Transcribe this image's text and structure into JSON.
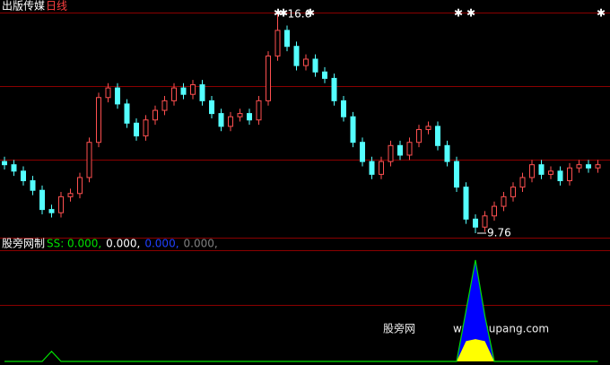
{
  "chart_data": {
    "type": "candlestick",
    "title": "出版传媒",
    "period": "日线",
    "up_color": "#ff5050",
    "down_color": "#54ffff",
    "ylim": [
      9.62,
      17.05
    ],
    "high_label": 16.6,
    "low_label": 9.76,
    "open": [
      12.0,
      11.9,
      11.7,
      11.4,
      11.1,
      10.5,
      10.4,
      10.9,
      11.0,
      11.5,
      12.6,
      14.0,
      14.3,
      13.8,
      13.2,
      12.8,
      13.3,
      13.6,
      13.9,
      14.3,
      14.1,
      14.4,
      13.9,
      13.5,
      13.1,
      13.4,
      13.5,
      13.3,
      13.9,
      15.3,
      16.1,
      15.6,
      15.0,
      15.2,
      14.8,
      14.6,
      13.9,
      13.4,
      12.6,
      12.0,
      11.6,
      12.0,
      12.5,
      12.2,
      12.6,
      13.0,
      13.1,
      12.5,
      12.0,
      11.2,
      10.2,
      9.95,
      10.3,
      10.6,
      10.9,
      11.2,
      11.5,
      11.9,
      11.6,
      11.7,
      11.4,
      11.8,
      11.9,
      11.8
    ],
    "high": [
      12.15,
      12.05,
      11.85,
      11.55,
      11.25,
      10.65,
      11.05,
      11.15,
      11.65,
      12.75,
      14.15,
      14.45,
      14.45,
      13.95,
      13.35,
      13.45,
      13.75,
      14.05,
      14.45,
      14.45,
      14.55,
      14.55,
      14.05,
      13.65,
      13.55,
      13.65,
      13.65,
      14.05,
      15.45,
      16.6,
      16.25,
      15.75,
      15.35,
      15.35,
      14.95,
      14.75,
      14.05,
      13.55,
      12.75,
      12.15,
      12.15,
      12.65,
      12.65,
      12.75,
      13.15,
      13.25,
      13.25,
      12.65,
      12.15,
      11.35,
      10.35,
      10.45,
      10.75,
      11.05,
      11.35,
      11.65,
      12.05,
      12.05,
      11.85,
      11.85,
      11.95,
      12.05,
      12.05,
      12.05
    ],
    "low": [
      11.75,
      11.55,
      11.25,
      10.95,
      10.35,
      10.25,
      10.25,
      10.75,
      10.85,
      11.35,
      12.45,
      13.85,
      13.65,
      13.05,
      12.65,
      12.65,
      13.15,
      13.45,
      13.75,
      13.95,
      13.95,
      13.75,
      13.35,
      12.95,
      12.95,
      13.25,
      13.15,
      13.15,
      13.75,
      15.15,
      15.45,
      14.85,
      14.85,
      14.65,
      14.45,
      13.75,
      13.25,
      12.45,
      11.85,
      11.45,
      11.45,
      11.85,
      12.05,
      12.05,
      12.45,
      12.85,
      12.35,
      11.85,
      11.05,
      10.05,
      9.76,
      9.8,
      10.15,
      10.45,
      10.75,
      11.05,
      11.35,
      11.45,
      11.45,
      11.25,
      11.25,
      11.65,
      11.65,
      11.65
    ],
    "close": [
      11.9,
      11.7,
      11.4,
      11.1,
      10.5,
      10.4,
      10.9,
      11.0,
      11.5,
      12.6,
      14.0,
      14.3,
      13.8,
      13.2,
      12.8,
      13.3,
      13.6,
      13.9,
      14.3,
      14.1,
      14.4,
      13.9,
      13.5,
      13.1,
      13.4,
      13.5,
      13.3,
      13.9,
      15.3,
      16.1,
      15.6,
      15.0,
      15.2,
      14.8,
      14.6,
      13.9,
      13.4,
      12.6,
      12.0,
      11.6,
      12.0,
      12.5,
      12.2,
      12.6,
      13.0,
      13.1,
      12.5,
      12.0,
      11.2,
      10.2,
      9.95,
      10.3,
      10.6,
      10.9,
      11.2,
      11.5,
      11.9,
      11.6,
      11.7,
      11.4,
      11.8,
      11.9,
      11.8,
      11.9
    ],
    "indicator": {
      "title": "股旁网制",
      "name": "SS:",
      "ylim": [
        0,
        100
      ],
      "readout": [
        0,
        0,
        0,
        0
      ],
      "readout_labels": [
        "0.000,",
        "0.000,",
        "0.000,",
        "0.000,"
      ],
      "readout_colors": [
        "#00e000",
        "#ffffff",
        "#2040ff",
        "#808080"
      ],
      "series": [
        {
          "color": "#0000ff",
          "values": [
            0,
            0,
            0,
            0,
            0,
            0,
            0,
            0,
            0,
            0,
            0,
            0,
            0,
            0,
            0,
            0,
            0,
            0,
            0,
            0,
            0,
            0,
            0,
            0,
            0,
            0,
            0,
            0,
            0,
            0,
            0,
            0,
            0,
            0,
            0,
            0,
            0,
            0,
            0,
            0,
            0,
            0,
            0,
            0,
            0,
            0,
            0,
            0,
            0,
            50,
            100,
            45,
            0,
            0,
            0,
            0,
            0,
            0,
            0,
            0,
            0,
            0,
            0,
            0
          ]
        },
        {
          "color": "#ffff00",
          "values": [
            0,
            0,
            0,
            0,
            0,
            0,
            0,
            0,
            0,
            0,
            0,
            0,
            0,
            0,
            0,
            0,
            0,
            0,
            0,
            0,
            0,
            0,
            0,
            0,
            0,
            0,
            0,
            0,
            0,
            0,
            0,
            0,
            0,
            0,
            0,
            0,
            0,
            0,
            0,
            0,
            0,
            0,
            0,
            0,
            0,
            0,
            0,
            0,
            0,
            20,
            22,
            20,
            0,
            0,
            0,
            0,
            0,
            0,
            0,
            0,
            0,
            0,
            0,
            0
          ]
        },
        {
          "color": "#00e000",
          "values": [
            0,
            0,
            0,
            0,
            0,
            10,
            0,
            0,
            0,
            0,
            0,
            0,
            0,
            0,
            0,
            0,
            0,
            0,
            0,
            0,
            0,
            0,
            0,
            0,
            0,
            0,
            0,
            0,
            0,
            0,
            0,
            0,
            0,
            0,
            0,
            0,
            0,
            0,
            0,
            0,
            0,
            0,
            0,
            0,
            0,
            0,
            0,
            0,
            0,
            50,
            100,
            45,
            0,
            0,
            0,
            0,
            0,
            0,
            0,
            0,
            0,
            0,
            0,
            0
          ]
        }
      ]
    },
    "watermark": {
      "name": "股旁网",
      "url": "www.gupang.com"
    }
  }
}
